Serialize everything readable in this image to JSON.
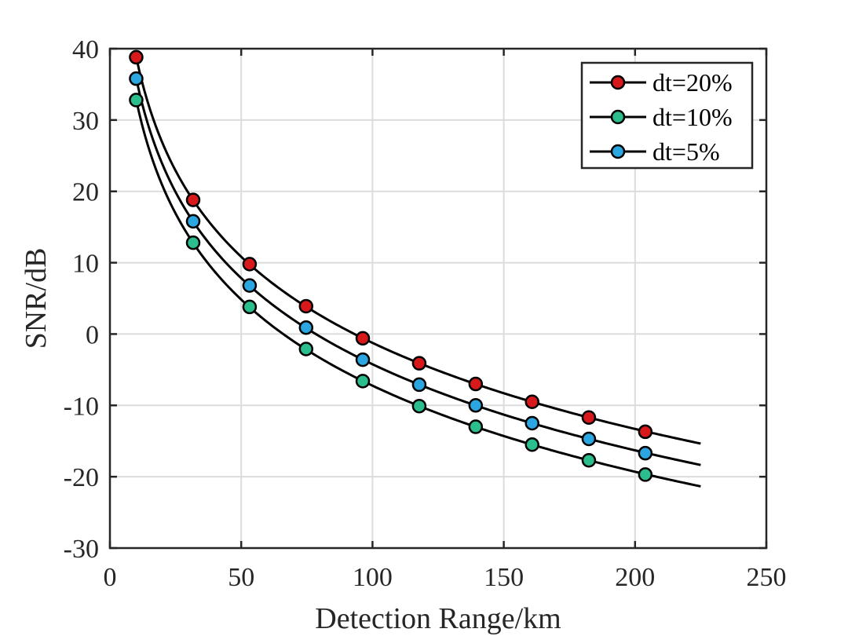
{
  "chart_data": {
    "type": "line",
    "title": "",
    "xlabel": "Detection Range/km",
    "ylabel": "SNR/dB",
    "xlim": [
      0,
      250
    ],
    "ylim": [
      -30,
      40
    ],
    "xticks": [
      0,
      50,
      100,
      150,
      200,
      250
    ],
    "yticks": [
      -30,
      -20,
      -10,
      0,
      10,
      20,
      30,
      40
    ],
    "xtick_labels": [
      "0",
      "50",
      "100",
      "150",
      "200",
      "250"
    ],
    "ytick_labels": [
      "-30",
      "-20",
      "-10",
      "0",
      "10",
      "20",
      "30",
      "40"
    ],
    "grid": true,
    "legend_position": "top-right",
    "line_x_range": [
      10,
      225
    ],
    "x": [
      10,
      31.7,
      53.2,
      74.7,
      96.3,
      117.8,
      139.3,
      160.8,
      182.4,
      203.9
    ],
    "series": [
      {
        "name": "dt=20%",
        "marker_color": "#d7191c",
        "values": [
          38.8,
          18.8,
          9.8,
          3.9,
          -0.6,
          -4.1,
          -7.0,
          -9.5,
          -11.7,
          -13.7
        ],
        "line_end_value": -15.6
      },
      {
        "name": "dt=10%",
        "marker_color": "#2bbd8e",
        "values": [
          32.8,
          12.8,
          3.8,
          -2.1,
          -6.6,
          -10.1,
          -13.0,
          -15.5,
          -17.7,
          -19.7
        ],
        "line_end_value": -21.6
      },
      {
        "name": "dt=5%",
        "marker_color": "#2ba6e0",
        "values": [
          35.8,
          15.8,
          6.8,
          0.9,
          -3.6,
          -7.1,
          -10.0,
          -12.5,
          -14.7,
          -16.7
        ],
        "line_end_value": -18.6
      }
    ]
  }
}
